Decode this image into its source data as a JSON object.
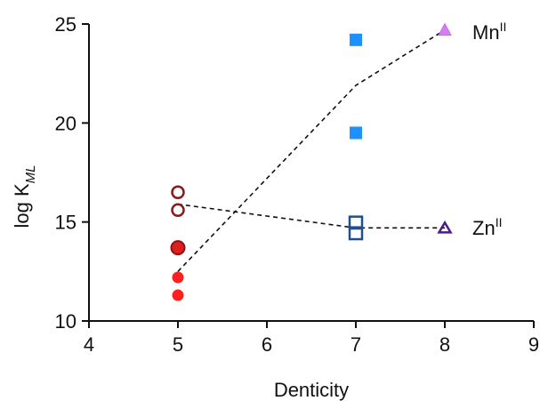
{
  "chart_data": {
    "type": "scatter",
    "title": "",
    "xlabel": "Denticity",
    "ylabel": {
      "base": "log K",
      "subscript": "ML"
    },
    "xlim": [
      4,
      9
    ],
    "ylim": [
      10,
      25
    ],
    "xticks": [
      "4",
      "5",
      "6",
      "7",
      "8",
      "9"
    ],
    "yticks": [
      "10",
      "15",
      "20",
      "25"
    ],
    "grid": false,
    "legend": "none",
    "series": [
      {
        "name": "MnII",
        "label": {
          "base": "Mn",
          "sup": "II"
        },
        "color_line": "#111111",
        "points": [
          {
            "x": 5,
            "y": 11.3,
            "shape": "circle",
            "fill": "#ff1f1f",
            "stroke": "#ff1f1f"
          },
          {
            "x": 5,
            "y": 12.2,
            "shape": "circle",
            "fill": "#ff1f1f",
            "stroke": "#ff1f1f"
          },
          {
            "x": 5,
            "y": 13.7,
            "shape": "circle-large",
            "fill": "#dd1f1f",
            "stroke": "#8b1414"
          },
          {
            "x": 7,
            "y": 19.5,
            "shape": "square",
            "fill": "#1e90ff",
            "stroke": "#1e90ff"
          },
          {
            "x": 7,
            "y": 24.2,
            "shape": "square",
            "fill": "#1e90ff",
            "stroke": "#1e90ff"
          },
          {
            "x": 8,
            "y": 24.7,
            "shape": "triangle",
            "fill": "#d67ff0",
            "stroke": "#c86ae6"
          }
        ],
        "trend": [
          [
            5,
            12.5
          ],
          [
            7,
            21.9
          ],
          [
            8,
            24.7
          ]
        ]
      },
      {
        "name": "ZnII",
        "label": {
          "base": "Zn",
          "sup": "II"
        },
        "color_line": "#111111",
        "points": [
          {
            "x": 5,
            "y": 15.6,
            "shape": "circle-open",
            "fill": "none",
            "stroke": "#8b1a1a"
          },
          {
            "x": 5,
            "y": 16.5,
            "shape": "circle-open",
            "fill": "none",
            "stroke": "#8b1a1a"
          },
          {
            "x": 7,
            "y": 14.4,
            "shape": "square-open",
            "fill": "none",
            "stroke": "#1f4f8f"
          },
          {
            "x": 7,
            "y": 15.0,
            "shape": "square-open",
            "fill": "none",
            "stroke": "#1f4f8f"
          },
          {
            "x": 8,
            "y": 14.7,
            "shape": "triangle-open",
            "fill": "none",
            "stroke": "#4b1c8c"
          }
        ],
        "trend": [
          [
            5,
            15.9
          ],
          [
            7,
            14.7
          ],
          [
            8,
            14.7
          ]
        ]
      }
    ]
  }
}
